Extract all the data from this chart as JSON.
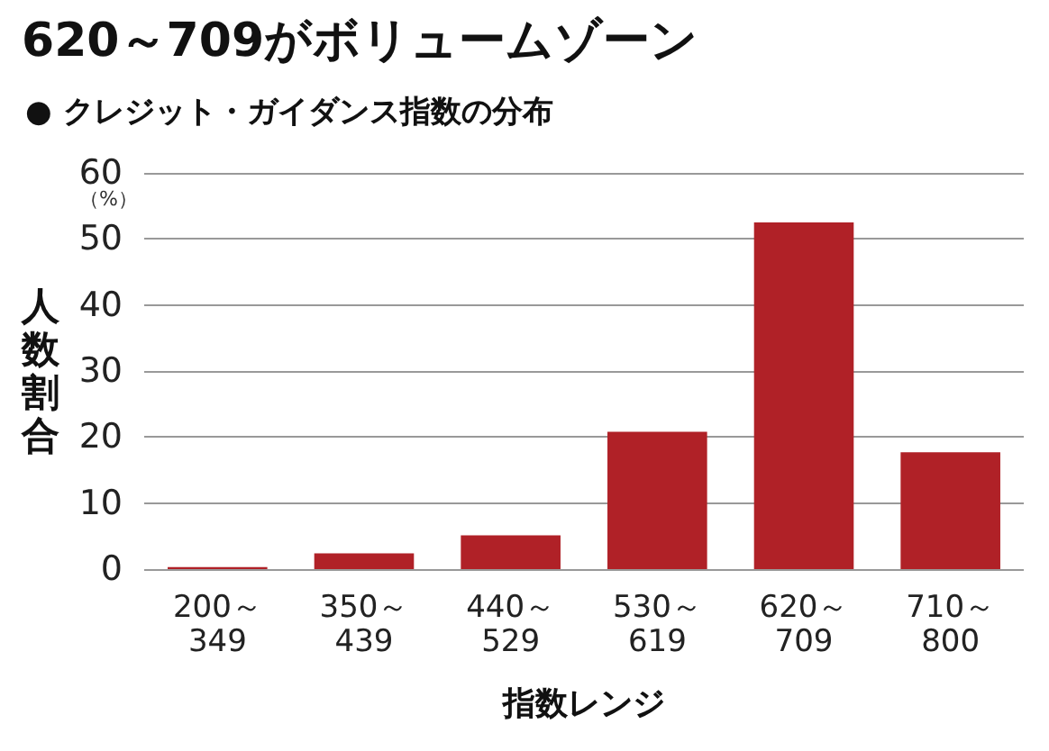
{
  "chart_data": {
    "type": "bar",
    "title": "620～709がボリュームゾーン",
    "subtitle": "● クレジット・ガイダンス指数の分布",
    "xlabel": "指数レンジ",
    "ylabel": "人数割合",
    "annotations": [
      "（%）"
    ],
    "categories": [
      "200～\n349",
      "350～\n439",
      "440～\n529",
      "530～\n619",
      "620～\n709",
      "710～\n800"
    ],
    "values": [
      0.3,
      2.4,
      5.1,
      20.8,
      52.5,
      17.7
    ],
    "color": "#b02127",
    "ylim": [
      0,
      60
    ],
    "yticks": [
      0,
      10,
      20,
      30,
      40,
      50,
      60
    ],
    "grid": "y"
  }
}
